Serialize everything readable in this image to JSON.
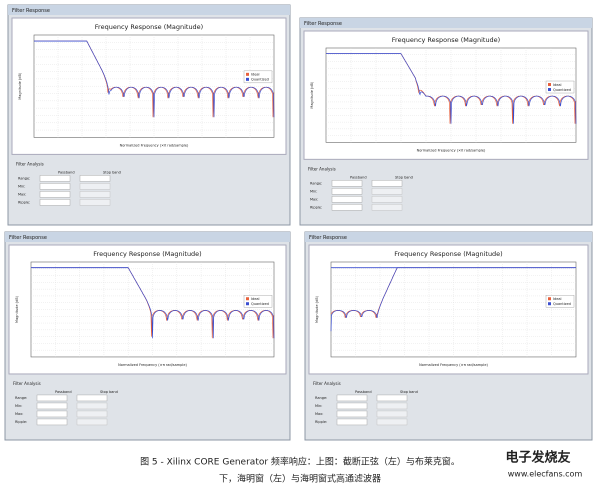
{
  "panels": [
    {
      "window_title": "Filter Response",
      "plot_title": "Frequency Response (Magnitude)",
      "y_label": "Magnitude (dB)",
      "x_label": "Normalized Frequency (×π rad/sample)",
      "legend": [
        "Ideal",
        "Quantized"
      ],
      "analysis_title": "Filter Analysis",
      "analysis_labels": [
        "Passband",
        "Stop band",
        "Range:",
        "Min:",
        "Max:",
        "Ripple:"
      ]
    },
    {
      "window_title": "Filter Response",
      "plot_title": "Frequency Response (Magnitude)",
      "y_label": "Magnitude (dB)",
      "x_label": "Normalized Frequency (×π rad/sample)",
      "legend": [
        "Ideal",
        "Quantized"
      ],
      "analysis_title": "Filter Analysis",
      "analysis_labels": [
        "Passband",
        "Stop band",
        "Range:",
        "Min:",
        "Max:",
        "Ripple:"
      ]
    },
    {
      "window_title": "Filter Response",
      "plot_title": "Frequency Response (Magnitude)",
      "y_label": "Magnitude (dB)",
      "x_label": "Normalized Frequency (×π rad/sample)",
      "legend": [
        "Ideal",
        "Quantized"
      ],
      "analysis_title": "Filter Analysis",
      "analysis_labels": [
        "Passband",
        "Stop band",
        "Range:",
        "Min:",
        "Max:",
        "Ripple:"
      ]
    },
    {
      "window_title": "Filter Response",
      "plot_title": "Frequency Response (Magnitude)",
      "y_label": "Magnitude (dB)",
      "x_label": "Normalized Frequency (×π rad/sample)",
      "legend": [
        "Ideal",
        "Quantized"
      ],
      "analysis_title": "Filter Analysis",
      "analysis_labels": [
        "Passband",
        "Stop band",
        "Range:",
        "Min:",
        "Max:",
        "Ripple:"
      ]
    }
  ],
  "caption": {
    "line1": "图 5 - Xilinx CORE Generator 频率响应：上图：截断正弦（左）与布莱克窗。",
    "line2": "下，海明窗（左）与海明窗式高通滤波器"
  },
  "watermark": {
    "name": "电子发烧友",
    "url": "www.elecfans.com"
  }
}
